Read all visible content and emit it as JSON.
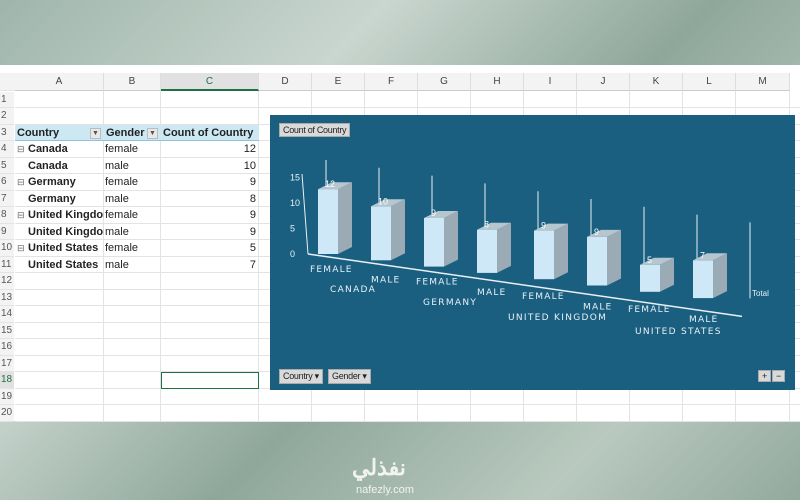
{
  "columns": [
    "A",
    "B",
    "C",
    "D",
    "E",
    "F",
    "G",
    "H",
    "I",
    "J",
    "K",
    "L",
    "M"
  ],
  "rows": [
    "1",
    "2",
    "3",
    "4",
    "5",
    "6",
    "7",
    "8",
    "9",
    "10",
    "11",
    "12",
    "13",
    "14",
    "15",
    "16",
    "17",
    "18",
    "19",
    "20"
  ],
  "pivot": {
    "headers": [
      "Country",
      "Gender",
      "Count of Country"
    ],
    "rows": [
      {
        "country": "Canada",
        "gender": "female",
        "count": "12",
        "group": true
      },
      {
        "country": "Canada",
        "gender": "male",
        "count": "10",
        "group": false
      },
      {
        "country": "Germany",
        "gender": "female",
        "count": "9",
        "group": true
      },
      {
        "country": "Germany",
        "gender": "male",
        "count": "8",
        "group": false
      },
      {
        "country": "United Kingdom",
        "gender": "female",
        "count": "9",
        "group": true
      },
      {
        "country": "United Kingdom",
        "gender": "male",
        "count": "9",
        "group": false
      },
      {
        "country": "United States",
        "gender": "female",
        "count": "5",
        "group": true
      },
      {
        "country": "United States",
        "gender": "male",
        "count": "7",
        "group": false
      }
    ]
  },
  "selected_cell": "C18",
  "chart_data": {
    "type": "bar",
    "style": "3d-column",
    "title": "Count of Country",
    "categories": [
      "FEMALE",
      "MALE",
      "FEMALE",
      "MALE",
      "FEMALE",
      "MALE",
      "FEMALE",
      "MALE"
    ],
    "groups": [
      "CANADA",
      "GERMANY",
      "UNITED KINGDOM",
      "UNITED STATES"
    ],
    "series": [
      {
        "name": "Total",
        "values": [
          12,
          10,
          9,
          8,
          9,
          9,
          5,
          7
        ]
      }
    ],
    "yticks": [
      "0",
      "5",
      "10",
      "15"
    ],
    "ylim": [
      0,
      15
    ],
    "legend": "right",
    "field_buttons": [
      "Country",
      "Gender"
    ],
    "zoom_buttons": [
      "+",
      "−"
    ],
    "colors": {
      "background": "#1a5f80",
      "bar_front": "#cfe8f8",
      "bar_side": "#9aabb6",
      "bar_top": "#b5c6cf"
    }
  },
  "watermark": {
    "arabic": "نفذلي",
    "latin": "nafezly.com"
  }
}
